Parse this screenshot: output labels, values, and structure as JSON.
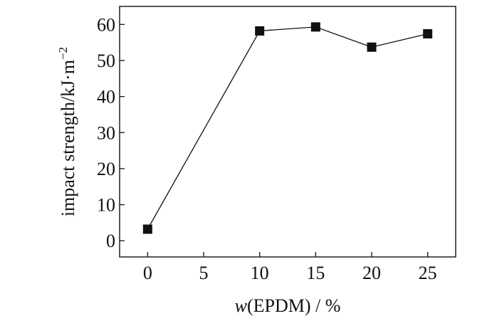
{
  "chart_data": {
    "type": "line",
    "title": "",
    "xlabel_prefix": "w",
    "xlabel_rest": "(EPDM) / %",
    "ylabel_main": "impact strength/kJ·m",
    "ylabel_sup": "−2",
    "xlim": [
      -2.5,
      27.5
    ],
    "ylim": [
      -4.5,
      65
    ],
    "xticks": [
      0,
      5,
      10,
      15,
      20,
      25
    ],
    "yticks": [
      0,
      10,
      20,
      30,
      40,
      50,
      60
    ],
    "grid": false,
    "series": [
      {
        "marker": "square",
        "color": "#111111",
        "x": [
          0,
          10,
          15,
          20,
          25
        ],
        "y": [
          3.2,
          58.2,
          59.3,
          53.7,
          57.4
        ]
      }
    ]
  }
}
